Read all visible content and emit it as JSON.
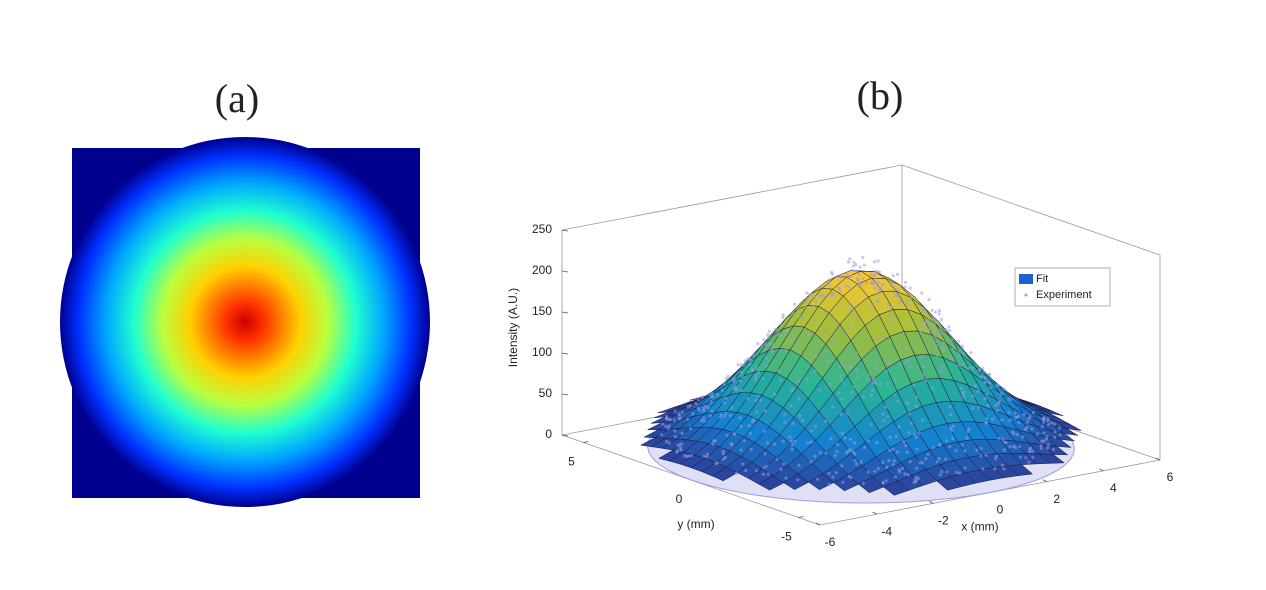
{
  "chart_data": [
    {
      "type": "heatmap",
      "title": "(a)",
      "background": "#00008f",
      "colors": [
        "#c80000",
        "#ff3000",
        "#ffd000",
        "#b8ff40",
        "#20ffd0",
        "#00a8ff",
        "#0030ff",
        "#00008f"
      ]
    },
    {
      "type": "surface3d",
      "title": "(b)",
      "zlabel": "Intensity (A.U.)",
      "xlabel": "x (mm)",
      "ylabel": "y (mm)",
      "xlim": [
        -6,
        6
      ],
      "ylim": [
        -6,
        6
      ],
      "zlim": [
        0,
        250
      ],
      "xticks": [
        -6,
        -4,
        -2,
        0,
        2,
        4,
        6
      ],
      "yticks": [
        5,
        0,
        -5
      ],
      "zticks": [
        0,
        50,
        100,
        150,
        200,
        250
      ],
      "surface": {
        "peak": 215,
        "width": 2.6
      },
      "series": [
        {
          "name": "Fit",
          "color": "#1f5fd6"
        },
        {
          "name": "Experiment",
          "color": "#9a9ae6"
        }
      ]
    }
  ]
}
